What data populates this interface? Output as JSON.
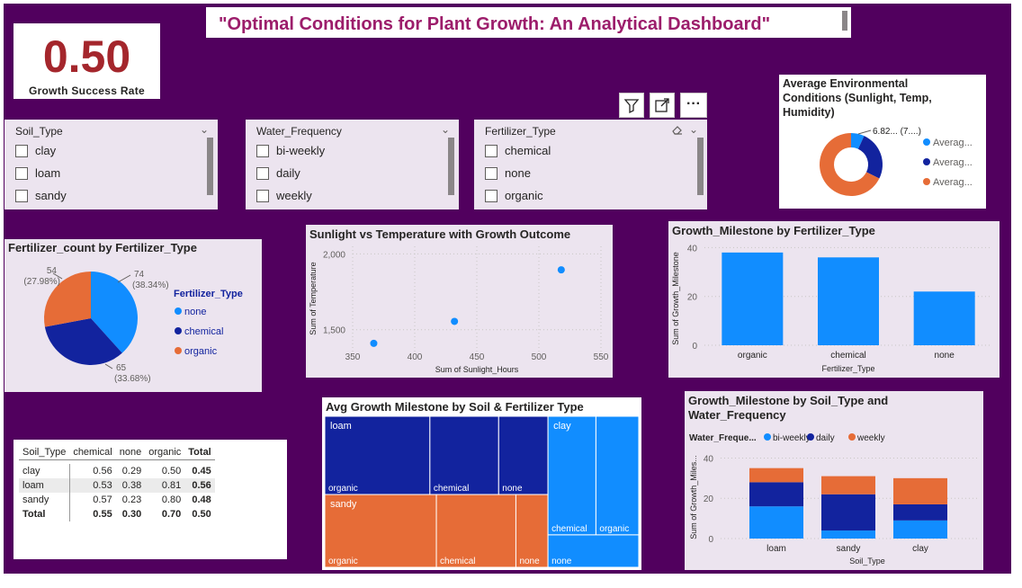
{
  "header": {
    "title": "\"Optimal Conditions for Plant Growth: An Analytical Dashboard\""
  },
  "kpi": {
    "value": "0.50",
    "label": "Growth Success Rate"
  },
  "toolbar": {
    "filter_icon": "filter-icon",
    "focus_icon": "focus-mode-icon",
    "more_label": "···"
  },
  "slicers": [
    {
      "title": "Soil_Type",
      "items": [
        "clay",
        "loam",
        "sandy"
      ]
    },
    {
      "title": "Water_Frequency",
      "items": [
        "bi-weekly",
        "daily",
        "weekly"
      ]
    },
    {
      "title": "Fertilizer_Type",
      "items": [
        "chemical",
        "none",
        "organic"
      ]
    }
  ],
  "colors": {
    "blue": "#118dff",
    "navy": "#12239e",
    "orange": "#e66c37",
    "bg": "#51005e"
  },
  "chart_data": [
    {
      "id": "donut",
      "type": "pie",
      "title": "Average Environmental Conditions (Sunlight, Temp, Humidity)",
      "data_label": "6.82... (7....)",
      "legend": [
        "Averag...",
        "Averag...",
        "Averag..."
      ],
      "values": [
        6.82,
        25.5,
        67.7
      ],
      "colors": [
        "#118dff",
        "#12239e",
        "#e66c37"
      ]
    },
    {
      "id": "pie",
      "type": "pie",
      "title": "Fertilizer_count by Fertilizer_Type",
      "legend_title": "Fertilizer_Type",
      "categories": [
        "none",
        "chemical",
        "organic"
      ],
      "values": [
        74,
        65,
        54
      ],
      "labels": [
        "74",
        "65",
        "54"
      ],
      "percents": [
        "(38.34%)",
        "(33.68%)",
        "(27.98%)"
      ],
      "colors": [
        "#118dff",
        "#12239e",
        "#e66c37"
      ]
    },
    {
      "id": "scatter",
      "type": "scatter",
      "title": "Sunlight vs Temperature with Growth Outcome",
      "xlabel": "Sum of Sunlight_Hours",
      "ylabel": "Sum of Temperature",
      "x": [
        367,
        432,
        518
      ],
      "y": [
        1410,
        1555,
        1895
      ],
      "xlim": [
        350,
        550
      ],
      "ylim": [
        1350,
        2050
      ],
      "xticks": [
        "350",
        "400",
        "450",
        "500",
        "550"
      ],
      "yticks": [
        "1,500",
        "2,000"
      ],
      "ytick_values": [
        1500,
        2000
      ]
    },
    {
      "id": "bar",
      "type": "bar",
      "title": "Growth_Milestone by Fertilizer_Type",
      "xlabel": "Fertilizer_Type",
      "ylabel": "Sum of Growth_Milestone",
      "categories": [
        "organic",
        "chemical",
        "none"
      ],
      "values": [
        38,
        36,
        22
      ],
      "ylim": [
        0,
        42
      ],
      "yticks": [
        "0",
        "20",
        "40"
      ],
      "ytick_values": [
        0,
        20,
        40
      ]
    },
    {
      "id": "treemap",
      "type": "heatmap",
      "title": "Avg Growth Milestone by Soil & Fertilizer Type",
      "groups": [
        {
          "name": "loam",
          "total": 1.72,
          "items": [
            {
              "name": "organic",
              "value": 0.81
            },
            {
              "name": "chemical",
              "value": 0.53
            },
            {
              "name": "none",
              "value": 0.38
            }
          ]
        },
        {
          "name": "sandy",
          "total": 1.6,
          "items": [
            {
              "name": "organic",
              "value": 0.8
            },
            {
              "name": "chemical",
              "value": 0.57
            },
            {
              "name": "none",
              "value": 0.23
            }
          ]
        },
        {
          "name": "clay",
          "total": 1.35,
          "items": [
            {
              "name": "chemical",
              "value": 0.56
            },
            {
              "name": "organic",
              "value": 0.5
            },
            {
              "name": "none",
              "value": 0.29
            }
          ]
        }
      ],
      "colors": [
        "#12239e",
        "#e66c37",
        "#118dff"
      ]
    },
    {
      "id": "stacked",
      "type": "bar",
      "title": "Growth_Milestone by Soil_Type and Water_Frequency",
      "legend_title": "Water_Freque...",
      "xlabel": "Soil_Type",
      "ylabel": "Sum of Growth_Miles...",
      "categories": [
        "loam",
        "sandy",
        "clay"
      ],
      "series": [
        {
          "name": "bi-weekly",
          "values": [
            16,
            4,
            9
          ]
        },
        {
          "name": "daily",
          "values": [
            12,
            18,
            8
          ]
        },
        {
          "name": "weekly",
          "values": [
            7,
            9,
            13
          ]
        }
      ],
      "ylim": [
        0,
        42
      ],
      "yticks": [
        "0",
        "20",
        "40"
      ],
      "ytick_values": [
        0,
        20,
        40
      ],
      "colors": [
        "#118dff",
        "#12239e",
        "#e66c37"
      ]
    },
    {
      "id": "matrix",
      "type": "table",
      "columns": [
        "Soil_Type",
        "chemical",
        "none",
        "organic",
        "Total"
      ],
      "rows": [
        [
          "clay",
          "0.56",
          "0.29",
          "0.50",
          "0.45"
        ],
        [
          "loam",
          "0.53",
          "0.38",
          "0.81",
          "0.56"
        ],
        [
          "sandy",
          "0.57",
          "0.23",
          "0.80",
          "0.48"
        ],
        [
          "Total",
          "0.55",
          "0.30",
          "0.70",
          "0.50"
        ]
      ]
    }
  ]
}
